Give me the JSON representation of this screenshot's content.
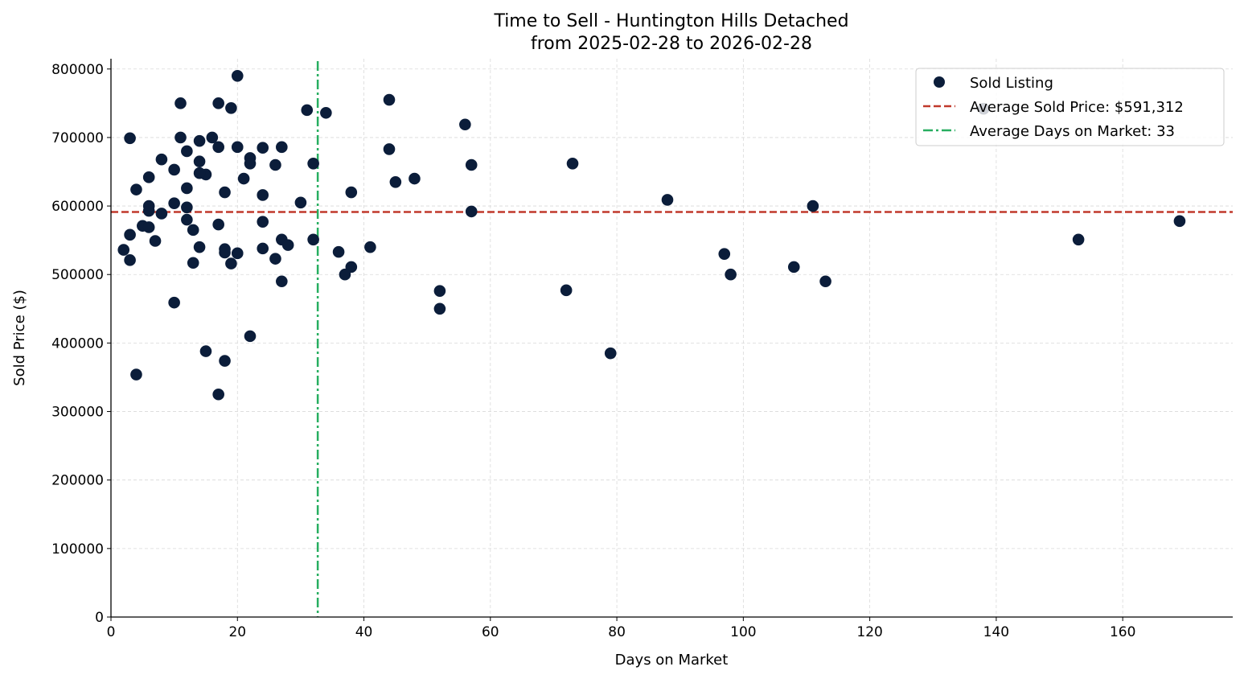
{
  "chart_data": {
    "type": "scatter",
    "title": "Time to Sell - Huntington Hills Detached",
    "subtitle": "from 2025-02-28 to 2026-02-28",
    "xlabel": "Days on Market",
    "ylabel": "Sold Price ($)",
    "xlim": [
      0,
      177.4
    ],
    "ylim": [
      0,
      815000
    ],
    "xticks": [
      0,
      20,
      40,
      60,
      80,
      100,
      120,
      140,
      160
    ],
    "yticks": [
      0,
      100000,
      200000,
      300000,
      400000,
      500000,
      600000,
      700000,
      800000
    ],
    "grid": true,
    "legend_position": "top-right",
    "colors": {
      "points": "#0b1d3a",
      "avg_price": "#c0392b",
      "avg_days": "#27ae60"
    },
    "series": [
      {
        "name": "Sold Listing",
        "points": [
          [
            3,
            699000
          ],
          [
            20,
            790000
          ],
          [
            11,
            750000
          ],
          [
            17,
            750000
          ],
          [
            19,
            743000
          ],
          [
            31,
            740000
          ],
          [
            34,
            736000
          ],
          [
            44,
            755000
          ],
          [
            56,
            719000
          ],
          [
            138,
            742000
          ],
          [
            11,
            700000
          ],
          [
            16,
            700000
          ],
          [
            14,
            695000
          ],
          [
            17,
            686000
          ],
          [
            20,
            686000
          ],
          [
            24,
            685000
          ],
          [
            27,
            686000
          ],
          [
            12,
            680000
          ],
          [
            44,
            683000
          ],
          [
            8,
            668000
          ],
          [
            14,
            665000
          ],
          [
            22,
            670000
          ],
          [
            22,
            662000
          ],
          [
            26,
            660000
          ],
          [
            32,
            662000
          ],
          [
            57,
            660000
          ],
          [
            73,
            662000
          ],
          [
            10,
            653000
          ],
          [
            15,
            646000
          ],
          [
            14,
            648000
          ],
          [
            6,
            642000
          ],
          [
            21,
            640000
          ],
          [
            48,
            640000
          ],
          [
            45,
            635000
          ],
          [
            12,
            626000
          ],
          [
            4,
            624000
          ],
          [
            18,
            620000
          ],
          [
            38,
            620000
          ],
          [
            24,
            616000
          ],
          [
            88,
            609000
          ],
          [
            30,
            605000
          ],
          [
            10,
            604000
          ],
          [
            111,
            600000
          ],
          [
            6,
            600000
          ],
          [
            12,
            598000
          ],
          [
            6,
            593000
          ],
          [
            57,
            592000
          ],
          [
            8,
            589000
          ],
          [
            12,
            580000
          ],
          [
            24,
            577000
          ],
          [
            169,
            578000
          ],
          [
            17,
            573000
          ],
          [
            5,
            571000
          ],
          [
            6,
            569000
          ],
          [
            13,
            565000
          ],
          [
            3,
            558000
          ],
          [
            153,
            551000
          ],
          [
            27,
            551000
          ],
          [
            32,
            551000
          ],
          [
            7,
            549000
          ],
          [
            28,
            543000
          ],
          [
            14,
            540000
          ],
          [
            41,
            540000
          ],
          [
            18,
            537000
          ],
          [
            24,
            538000
          ],
          [
            2,
            536000
          ],
          [
            18,
            532000
          ],
          [
            36,
            533000
          ],
          [
            20,
            531000
          ],
          [
            97,
            530000
          ],
          [
            26,
            523000
          ],
          [
            3,
            521000
          ],
          [
            13,
            517000
          ],
          [
            19,
            516000
          ],
          [
            108,
            511000
          ],
          [
            38,
            511000
          ],
          [
            37,
            500000
          ],
          [
            98,
            500000
          ],
          [
            27,
            490000
          ],
          [
            113,
            490000
          ],
          [
            52,
            476000
          ],
          [
            72,
            477000
          ],
          [
            10,
            459000
          ],
          [
            52,
            450000
          ],
          [
            22,
            410000
          ],
          [
            15,
            388000
          ],
          [
            79,
            385000
          ],
          [
            18,
            374000
          ],
          [
            4,
            354000
          ],
          [
            17,
            325000
          ]
        ]
      }
    ],
    "reference_lines": [
      {
        "name": "Average Sold Price: $591,312",
        "orientation": "horizontal",
        "value": 591312,
        "style": "dashed"
      },
      {
        "name": "Average Days on Market: 33",
        "orientation": "vertical",
        "value": 32.7,
        "style": "dashdot"
      }
    ]
  }
}
